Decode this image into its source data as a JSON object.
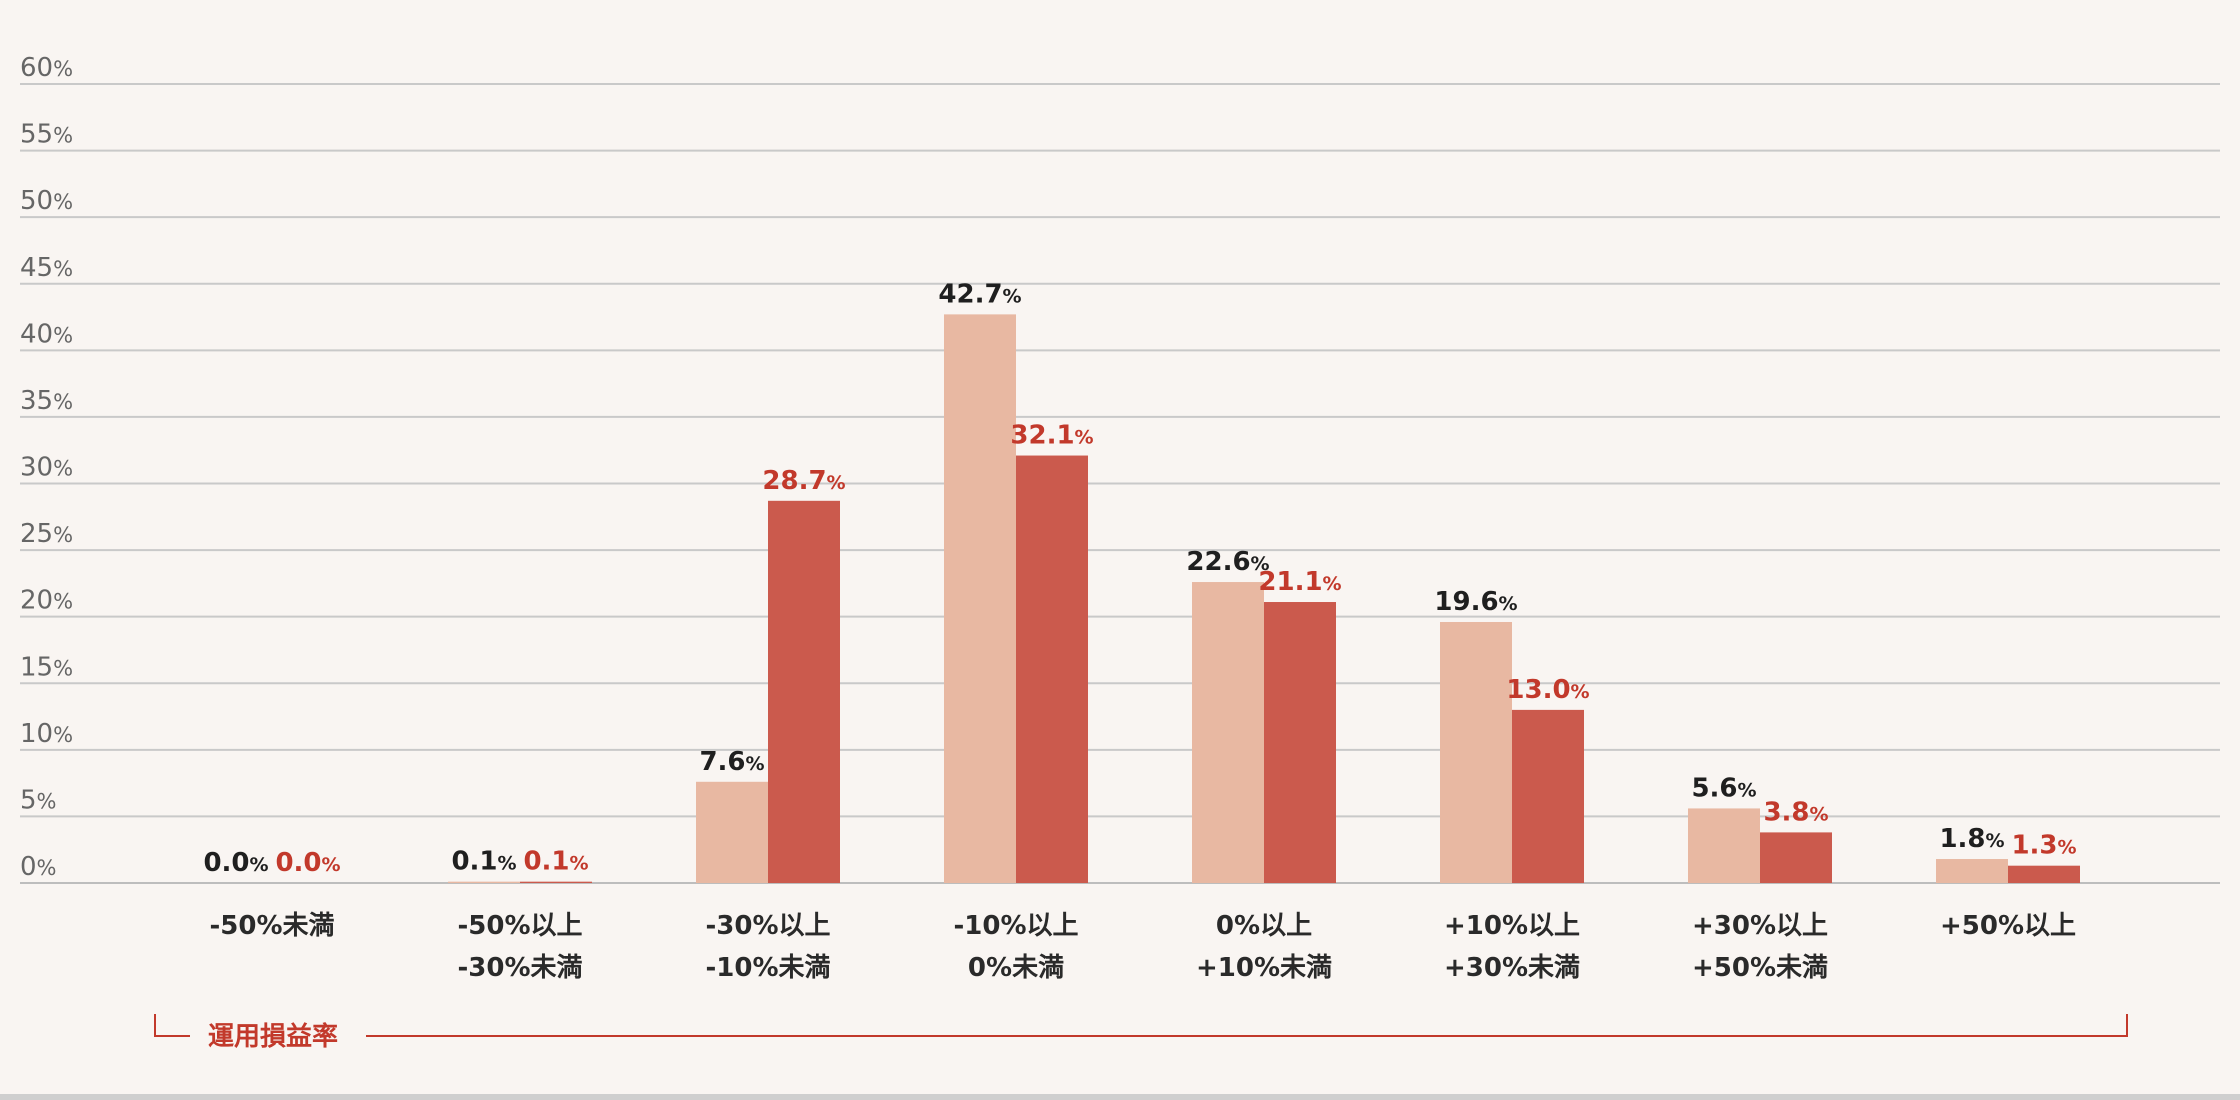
{
  "chart_data": {
    "type": "bar",
    "categories": [
      [
        "-50%未満"
      ],
      [
        "-50%以上",
        "-30%未満"
      ],
      [
        "-30%以上",
        "-10%未満"
      ],
      [
        "-10%以上",
        "0%未満"
      ],
      [
        "0%以上",
        "+10%未満"
      ],
      [
        "+10%以上",
        "+30%未満"
      ],
      [
        "+30%以上",
        "+50%未満"
      ],
      [
        "+50%以上"
      ]
    ],
    "series": [
      {
        "values": [
          0.0,
          0.1,
          7.6,
          42.7,
          22.6,
          19.6,
          5.6,
          1.8
        ],
        "value_labels": [
          "0.0",
          "0.1",
          "7.6",
          "42.7",
          "22.6",
          "19.6",
          "5.6",
          "1.8"
        ],
        "color": "#e8b8a2",
        "label_color": "#1f1f1f"
      },
      {
        "values": [
          0.0,
          0.1,
          28.7,
          32.1,
          21.1,
          13.0,
          3.8,
          1.3
        ],
        "value_labels": [
          "0.0",
          "0.1",
          "28.7",
          "32.1",
          "21.1",
          "13.0",
          "3.8",
          "1.3"
        ],
        "color": "#cb5a4d",
        "label_color": "#c2392b"
      }
    ],
    "value_suffix": "%",
    "ylim": [
      0,
      60
    ],
    "yticks": [
      0,
      5,
      10,
      15,
      20,
      25,
      30,
      35,
      40,
      45,
      50,
      55,
      60
    ],
    "ytick_suffix": "%",
    "grid": true,
    "xlabel": "運用損益率",
    "xlabel_color": "#c2392b"
  }
}
